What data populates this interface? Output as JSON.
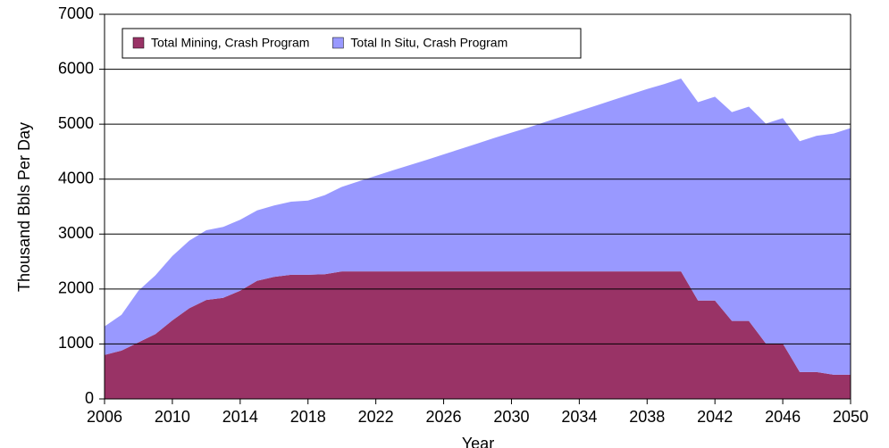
{
  "chart_data": {
    "type": "stacked_area",
    "x_label": "Year",
    "y_label": "Thousand Bbls Per Day",
    "x": [
      2006,
      2007,
      2008,
      2009,
      2010,
      2011,
      2012,
      2013,
      2014,
      2015,
      2016,
      2017,
      2018,
      2019,
      2020,
      2021,
      2022,
      2023,
      2024,
      2025,
      2026,
      2027,
      2028,
      2029,
      2030,
      2031,
      2032,
      2033,
      2034,
      2035,
      2036,
      2037,
      2038,
      2039,
      2040,
      2041,
      2042,
      2043,
      2044,
      2045,
      2046,
      2047,
      2048,
      2049,
      2050
    ],
    "series": [
      {
        "name": "Total Mining, Crash Program",
        "color": "#993366",
        "values": [
          800,
          880,
          1030,
          1180,
          1430,
          1650,
          1800,
          1840,
          1970,
          2150,
          2220,
          2260,
          2260,
          2270,
          2320,
          2320,
          2320,
          2320,
          2320,
          2320,
          2320,
          2320,
          2320,
          2320,
          2320,
          2320,
          2320,
          2320,
          2320,
          2320,
          2320,
          2320,
          2320,
          2320,
          2320,
          1790,
          1790,
          1420,
          1420,
          1010,
          1010,
          490,
          490,
          440,
          440
        ]
      },
      {
        "name": "Total In Situ, Crash Program",
        "color": "#9999ff",
        "values": [
          520,
          650,
          940,
          1070,
          1170,
          1230,
          1270,
          1290,
          1290,
          1280,
          1300,
          1330,
          1350,
          1440,
          1540,
          1640,
          1740,
          1840,
          1935,
          2030,
          2130,
          2230,
          2330,
          2430,
          2525,
          2620,
          2720,
          2820,
          2920,
          3020,
          3120,
          3220,
          3320,
          3410,
          3510,
          3610,
          3710,
          3800,
          3900,
          4000,
          4100,
          4200,
          4300,
          4390,
          4490
        ]
      }
    ],
    "xlim": [
      2006,
      2050
    ],
    "xticks": [
      2006,
      2010,
      2014,
      2018,
      2022,
      2026,
      2030,
      2034,
      2038,
      2042,
      2046,
      2050
    ],
    "ylim": [
      0,
      7000
    ],
    "yticks": [
      0,
      1000,
      2000,
      3000,
      4000,
      5000,
      6000,
      7000
    ],
    "grid": true,
    "legend": "top-left"
  }
}
